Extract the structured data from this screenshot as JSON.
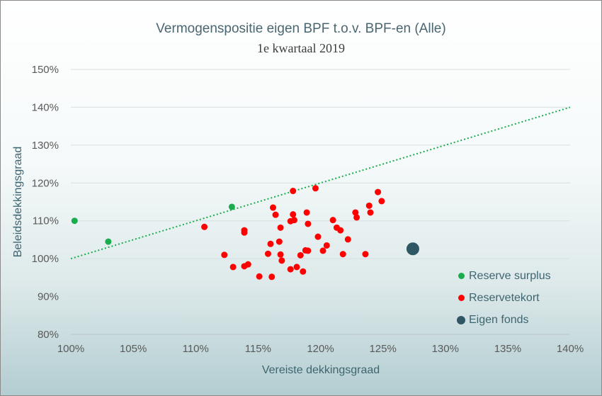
{
  "chart_data": {
    "type": "scatter",
    "title": "Vermogenspositie eigen BPF t.o.v. BPF-en (Alle)",
    "subtitle": "1e kwartaal 2019",
    "xlabel": "Vereiste dekkingsgraad",
    "ylabel": "Beleidsdekkingsgraad",
    "xlim": [
      100,
      140
    ],
    "ylim": [
      80,
      150
    ],
    "x_ticks": [
      "100%",
      "105%",
      "110%",
      "115%",
      "120%",
      "125%",
      "130%",
      "135%",
      "140%"
    ],
    "y_ticks": [
      "80%",
      "90%",
      "100%",
      "110%",
      "120%",
      "130%",
      "140%",
      "150%"
    ],
    "grid": "horizontal",
    "legend_position": "bottom-right",
    "reference_line": {
      "from": [
        100,
        100
      ],
      "to": [
        140,
        140
      ],
      "style": "dotted",
      "color": "#1aad4e"
    },
    "series": [
      {
        "name": "Reserve surplus",
        "color": "#1aad4e",
        "points": [
          [
            100.3,
            110.0
          ],
          [
            103.0,
            104.5
          ],
          [
            112.9,
            113.7
          ]
        ]
      },
      {
        "name": "Reservetekort",
        "color": "#ff0000",
        "points": [
          [
            110.7,
            108.4
          ],
          [
            112.3,
            101.0
          ],
          [
            113.0,
            97.8
          ],
          [
            113.9,
            107.5
          ],
          [
            113.9,
            106.9
          ],
          [
            113.9,
            98.0
          ],
          [
            114.2,
            98.5
          ],
          [
            115.1,
            95.3
          ],
          [
            115.8,
            101.3
          ],
          [
            116.0,
            103.9
          ],
          [
            116.1,
            95.2
          ],
          [
            116.2,
            113.5
          ],
          [
            116.4,
            111.6
          ],
          [
            116.7,
            104.5
          ],
          [
            116.8,
            108.2
          ],
          [
            116.8,
            101.1
          ],
          [
            116.9,
            99.5
          ],
          [
            117.6,
            97.2
          ],
          [
            117.6,
            109.9
          ],
          [
            117.8,
            117.9
          ],
          [
            117.8,
            111.7
          ],
          [
            117.9,
            110.2
          ],
          [
            118.1,
            97.8
          ],
          [
            118.4,
            100.9
          ],
          [
            118.6,
            96.6
          ],
          [
            118.8,
            102.2
          ],
          [
            119.0,
            102.1
          ],
          [
            118.9,
            112.2
          ],
          [
            119.0,
            109.2
          ],
          [
            119.6,
            118.6
          ],
          [
            119.8,
            105.8
          ],
          [
            120.2,
            102.1
          ],
          [
            120.5,
            103.5
          ],
          [
            121.0,
            110.2
          ],
          [
            121.3,
            108.2
          ],
          [
            121.6,
            107.5
          ],
          [
            121.8,
            101.2
          ],
          [
            122.2,
            105.1
          ],
          [
            122.8,
            112.2
          ],
          [
            122.9,
            110.9
          ],
          [
            123.6,
            101.2
          ],
          [
            123.9,
            114.0
          ],
          [
            124.0,
            112.2
          ],
          [
            124.6,
            117.6
          ],
          [
            124.9,
            115.2
          ]
        ]
      },
      {
        "name": "Eigen fonds",
        "color": "#2f5763",
        "points": [
          [
            127.4,
            102.6
          ]
        ]
      }
    ]
  }
}
